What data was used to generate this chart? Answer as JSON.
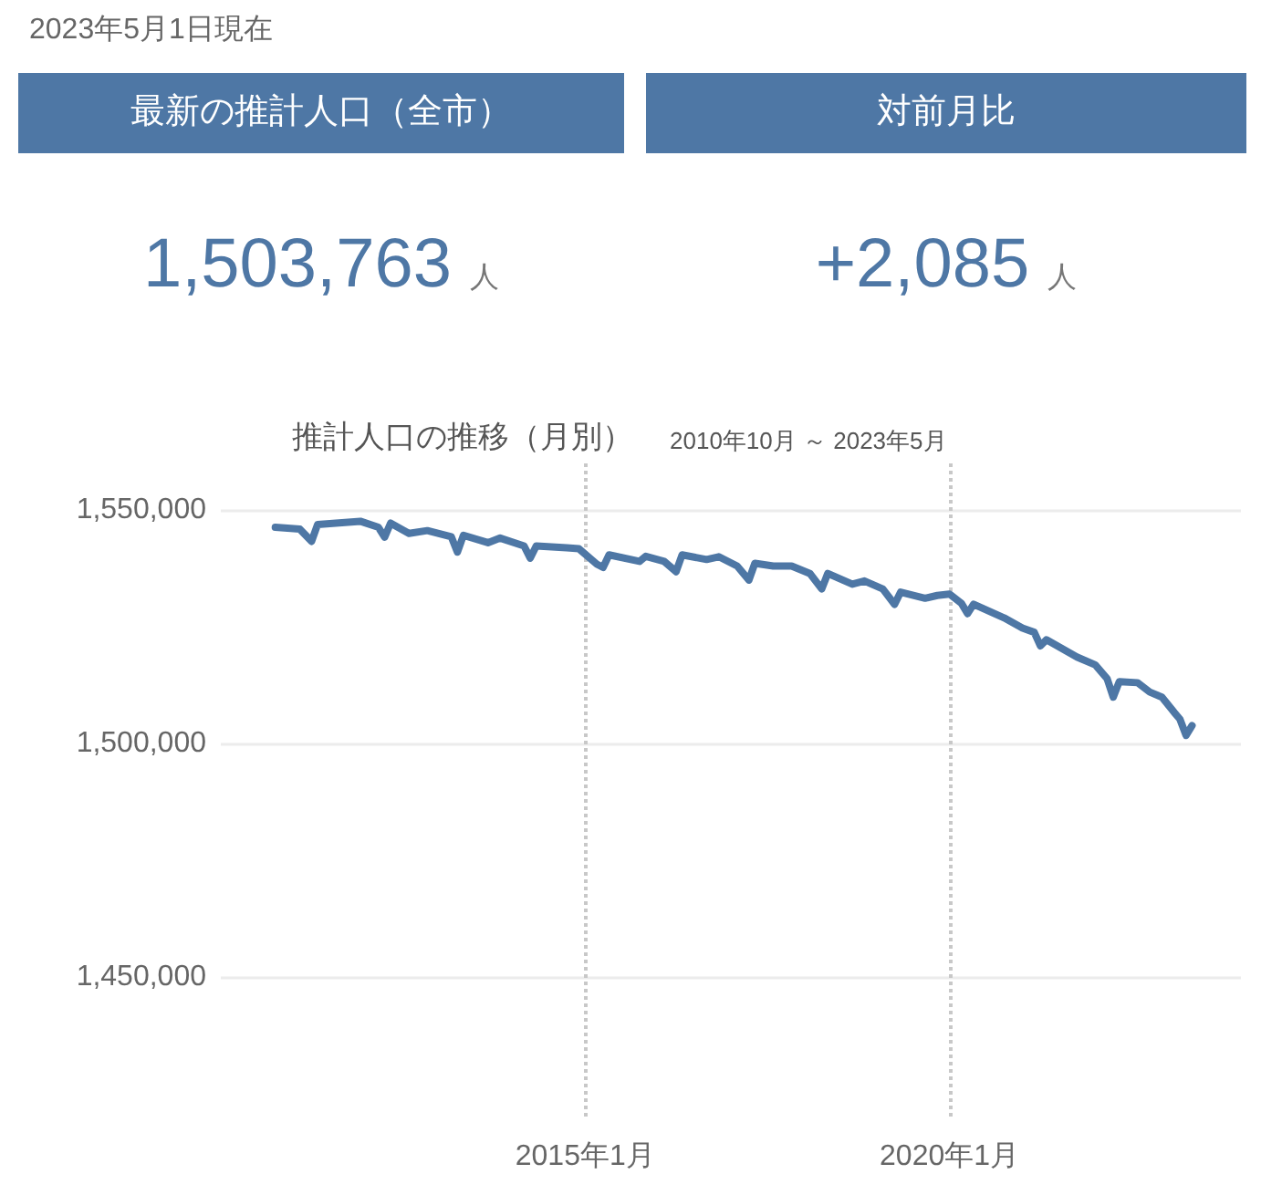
{
  "chart_data": [
    {
      "type": "other",
      "annotations": [
        "2023年5月1日現在"
      ]
    },
    {
      "type": "other",
      "title": "最新の推計人口（全市）",
      "color": "#4e77a5",
      "annotations": [
        "1,503,763",
        "人"
      ]
    },
    {
      "type": "other",
      "title": "対前月比",
      "color": "#4e77a5",
      "annotations": [
        "+2,085",
        "人"
      ]
    },
    {
      "type": "line",
      "title": "推計人口の推移（月別）",
      "subtitle": "2010年10月 ～ 2023年5月",
      "grid": true,
      "marker": "none",
      "line_style": "solid",
      "xlim": [
        "2010-01",
        "2024-01"
      ],
      "xticks": [
        {
          "value": "2015-01",
          "label": "2015年1月"
        },
        {
          "value": "2020-01",
          "label": "2020年1月"
        }
      ],
      "ylim": [
        1420000,
        1560000
      ],
      "yticks": [
        {
          "value": 1450000,
          "label": "1,450,000"
        },
        {
          "value": 1500000,
          "label": "1,500,000"
        },
        {
          "value": 1550000,
          "label": "1,550,000"
        }
      ],
      "series": [
        {
          "color": "#4e77a5",
          "x": [
            "2010-10",
            "2011-02",
            "2011-04",
            "2011-05",
            "2011-12",
            "2012-03",
            "2012-04",
            "2012-05",
            "2012-08",
            "2012-11",
            "2013-03",
            "2013-04",
            "2013-05",
            "2013-09",
            "2013-11",
            "2014-03",
            "2014-04",
            "2014-05",
            "2014-10",
            "2014-12",
            "2015-03",
            "2015-04",
            "2015-05",
            "2015-10",
            "2015-11",
            "2016-02",
            "2016-04",
            "2016-05",
            "2016-09",
            "2016-11",
            "2017-02",
            "2017-04",
            "2017-05",
            "2017-08",
            "2017-11",
            "2018-02",
            "2018-04",
            "2018-05",
            "2018-09",
            "2018-11",
            "2019-02",
            "2019-04",
            "2019-05",
            "2019-09",
            "2019-11",
            "2020-01",
            "2020-03",
            "2020-04",
            "2020-05",
            "2020-10",
            "2021-01",
            "2021-03",
            "2021-04",
            "2021-05",
            "2021-10",
            "2022-01",
            "2022-03",
            "2022-04",
            "2022-05",
            "2022-08",
            "2022-10",
            "2022-12",
            "2023-02",
            "2023-03",
            "2023-04",
            "2023-05"
          ],
          "values": [
            1546300,
            1545900,
            1543300,
            1546900,
            1547600,
            1546300,
            1544200,
            1547200,
            1545000,
            1545600,
            1544300,
            1541000,
            1544600,
            1543000,
            1544000,
            1542300,
            1539700,
            1542300,
            1541900,
            1541700,
            1538400,
            1537700,
            1540400,
            1539000,
            1540100,
            1539000,
            1536800,
            1540400,
            1539400,
            1540000,
            1538000,
            1535000,
            1538600,
            1538000,
            1538000,
            1536400,
            1533100,
            1536400,
            1534100,
            1534800,
            1533100,
            1529800,
            1532400,
            1531100,
            1531700,
            1532000,
            1530000,
            1527800,
            1529800,
            1526900,
            1524700,
            1523800,
            1520900,
            1522200,
            1518500,
            1516800,
            1513900,
            1509900,
            1513200,
            1513000,
            1511000,
            1509900,
            1506600,
            1505200,
            1501700,
            1503800
          ]
        }
      ]
    }
  ]
}
